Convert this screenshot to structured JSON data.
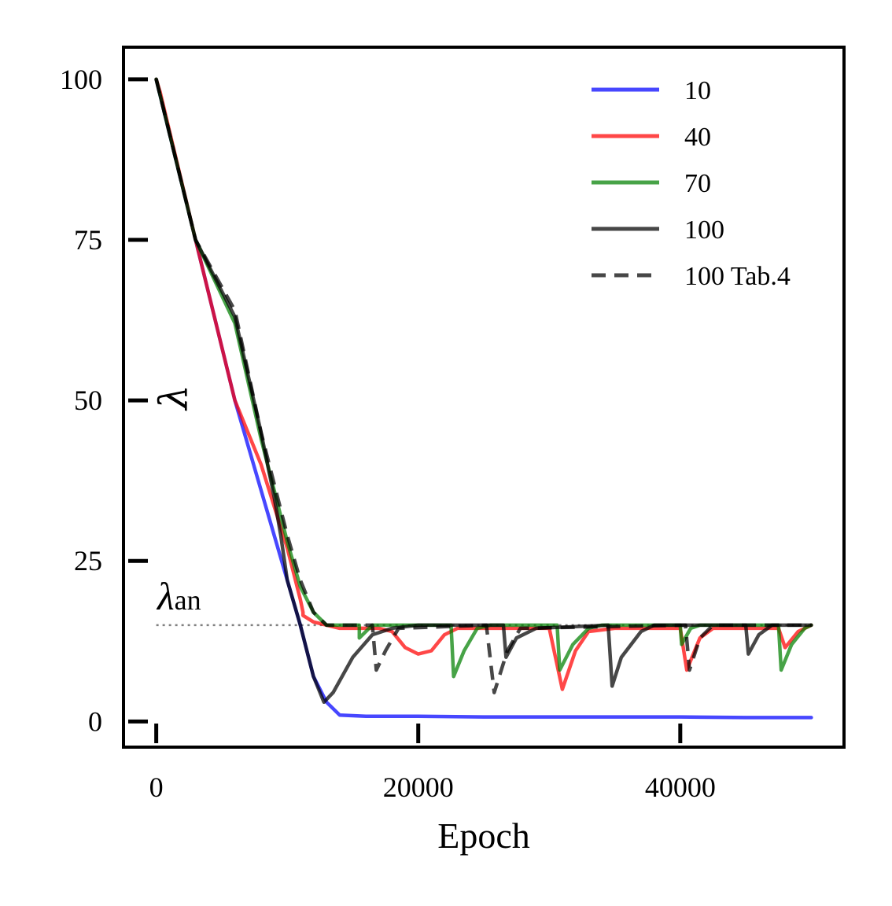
{
  "chart_data": {
    "type": "line",
    "xlabel": "Epoch",
    "ylabel": "λ",
    "xlim": [
      -2500,
      52500
    ],
    "ylim": [
      -4,
      105
    ],
    "xticks": [
      0,
      20000,
      40000
    ],
    "yticks": [
      0,
      25,
      50,
      75,
      100
    ],
    "x_tick_labels": [
      "0",
      "20000",
      "40000"
    ],
    "y_tick_labels": [
      "0",
      "25",
      "50",
      "75",
      "100"
    ],
    "legend_position": "top-right",
    "grid": false,
    "annotation": {
      "symbol": "λ",
      "subscript": "an",
      "value": 15,
      "x_range": [
        0,
        50000
      ],
      "color": "#808080",
      "style": "dotted"
    },
    "series": [
      {
        "name": "10",
        "color": "#0000ff",
        "dash": "solid",
        "points": [
          [
            0,
            100
          ],
          [
            3000,
            75
          ],
          [
            6000,
            50
          ],
          [
            8000,
            36
          ],
          [
            10000,
            22
          ],
          [
            11000,
            15
          ],
          [
            12000,
            7
          ],
          [
            13000,
            3
          ],
          [
            14000,
            1
          ],
          [
            16000,
            0.8
          ],
          [
            20000,
            0.8
          ],
          [
            25000,
            0.7
          ],
          [
            30000,
            0.7
          ],
          [
            35000,
            0.7
          ],
          [
            40000,
            0.7
          ],
          [
            45000,
            0.6
          ],
          [
            50000,
            0.6
          ]
        ]
      },
      {
        "name": "40",
        "color": "#ff0000",
        "dash": "solid",
        "points": [
          [
            0,
            100
          ],
          [
            300,
            98
          ],
          [
            3000,
            75
          ],
          [
            6000,
            50
          ],
          [
            8000,
            40
          ],
          [
            10000,
            27
          ],
          [
            11000,
            19
          ],
          [
            11200,
            17
          ],
          [
            11200,
            16.5
          ],
          [
            12000,
            15.5
          ],
          [
            14000,
            14.5
          ],
          [
            17000,
            14.5
          ],
          [
            18000,
            14
          ],
          [
            19000,
            11.5
          ],
          [
            20000,
            10.5
          ],
          [
            21000,
            11
          ],
          [
            22000,
            13.5
          ],
          [
            23000,
            14.5
          ],
          [
            30000,
            14.5
          ],
          [
            31000,
            5
          ],
          [
            32000,
            11
          ],
          [
            33000,
            14
          ],
          [
            35000,
            14.5
          ],
          [
            40000,
            14.5
          ],
          [
            40500,
            8
          ],
          [
            41500,
            13
          ],
          [
            42500,
            14.5
          ],
          [
            47500,
            14.5
          ],
          [
            48000,
            11.5
          ],
          [
            49000,
            14
          ],
          [
            50000,
            15
          ]
        ]
      },
      {
        "name": "70",
        "color": "#008000",
        "dash": "solid",
        "points": [
          [
            0,
            100
          ],
          [
            3000,
            75
          ],
          [
            6000,
            62
          ],
          [
            8000,
            44
          ],
          [
            10000,
            28
          ],
          [
            11000,
            21
          ],
          [
            12000,
            17
          ],
          [
            13000,
            15
          ],
          [
            15500,
            15
          ],
          [
            15500,
            13
          ],
          [
            16500,
            15
          ],
          [
            22500,
            15
          ],
          [
            22700,
            7
          ],
          [
            23500,
            11
          ],
          [
            24500,
            14.5
          ],
          [
            25500,
            15
          ],
          [
            30600,
            15
          ],
          [
            30800,
            8
          ],
          [
            31800,
            12
          ],
          [
            33000,
            14.5
          ],
          [
            34000,
            15
          ],
          [
            40000,
            15
          ],
          [
            40100,
            12
          ],
          [
            40800,
            14.5
          ],
          [
            41500,
            15
          ],
          [
            47500,
            15
          ],
          [
            47700,
            8
          ],
          [
            48500,
            12
          ],
          [
            49500,
            14.5
          ],
          [
            50000,
            15
          ]
        ]
      },
      {
        "name": "100",
        "color": "#000000",
        "dash": "solid",
        "points": [
          [
            0,
            100
          ],
          [
            3000,
            75
          ],
          [
            6000,
            63
          ],
          [
            8000,
            45
          ],
          [
            9000,
            35
          ],
          [
            9500,
            29
          ],
          [
            10000,
            22
          ],
          [
            11000,
            15
          ],
          [
            12000,
            7
          ],
          [
            12800,
            3
          ],
          [
            13500,
            4.5
          ],
          [
            15000,
            10
          ],
          [
            16500,
            13.5
          ],
          [
            18000,
            14.5
          ],
          [
            20000,
            15
          ],
          [
            26500,
            15
          ],
          [
            26700,
            10
          ],
          [
            27500,
            13
          ],
          [
            29000,
            14.5
          ],
          [
            34500,
            15
          ],
          [
            34800,
            5.5
          ],
          [
            35500,
            10
          ],
          [
            37000,
            14
          ],
          [
            38000,
            15
          ],
          [
            45000,
            15
          ],
          [
            45200,
            10.5
          ],
          [
            46000,
            13.5
          ],
          [
            47000,
            15
          ],
          [
            50000,
            15
          ]
        ]
      },
      {
        "name": "100 Tab.4",
        "color": "#000000",
        "dash": "dashed",
        "points": [
          [
            0,
            100
          ],
          [
            3000,
            75
          ],
          [
            6000,
            64
          ],
          [
            8000,
            45
          ],
          [
            10000,
            29
          ],
          [
            11000,
            22
          ],
          [
            12000,
            17
          ],
          [
            13000,
            15
          ],
          [
            16500,
            15
          ],
          [
            16800,
            8
          ],
          [
            17500,
            11
          ],
          [
            18500,
            14.5
          ],
          [
            25200,
            15
          ],
          [
            25800,
            4.5
          ],
          [
            26800,
            11
          ],
          [
            27800,
            14.5
          ],
          [
            40400,
            15
          ],
          [
            40700,
            8
          ],
          [
            41500,
            13
          ],
          [
            42500,
            15
          ],
          [
            50000,
            15
          ]
        ]
      }
    ]
  }
}
